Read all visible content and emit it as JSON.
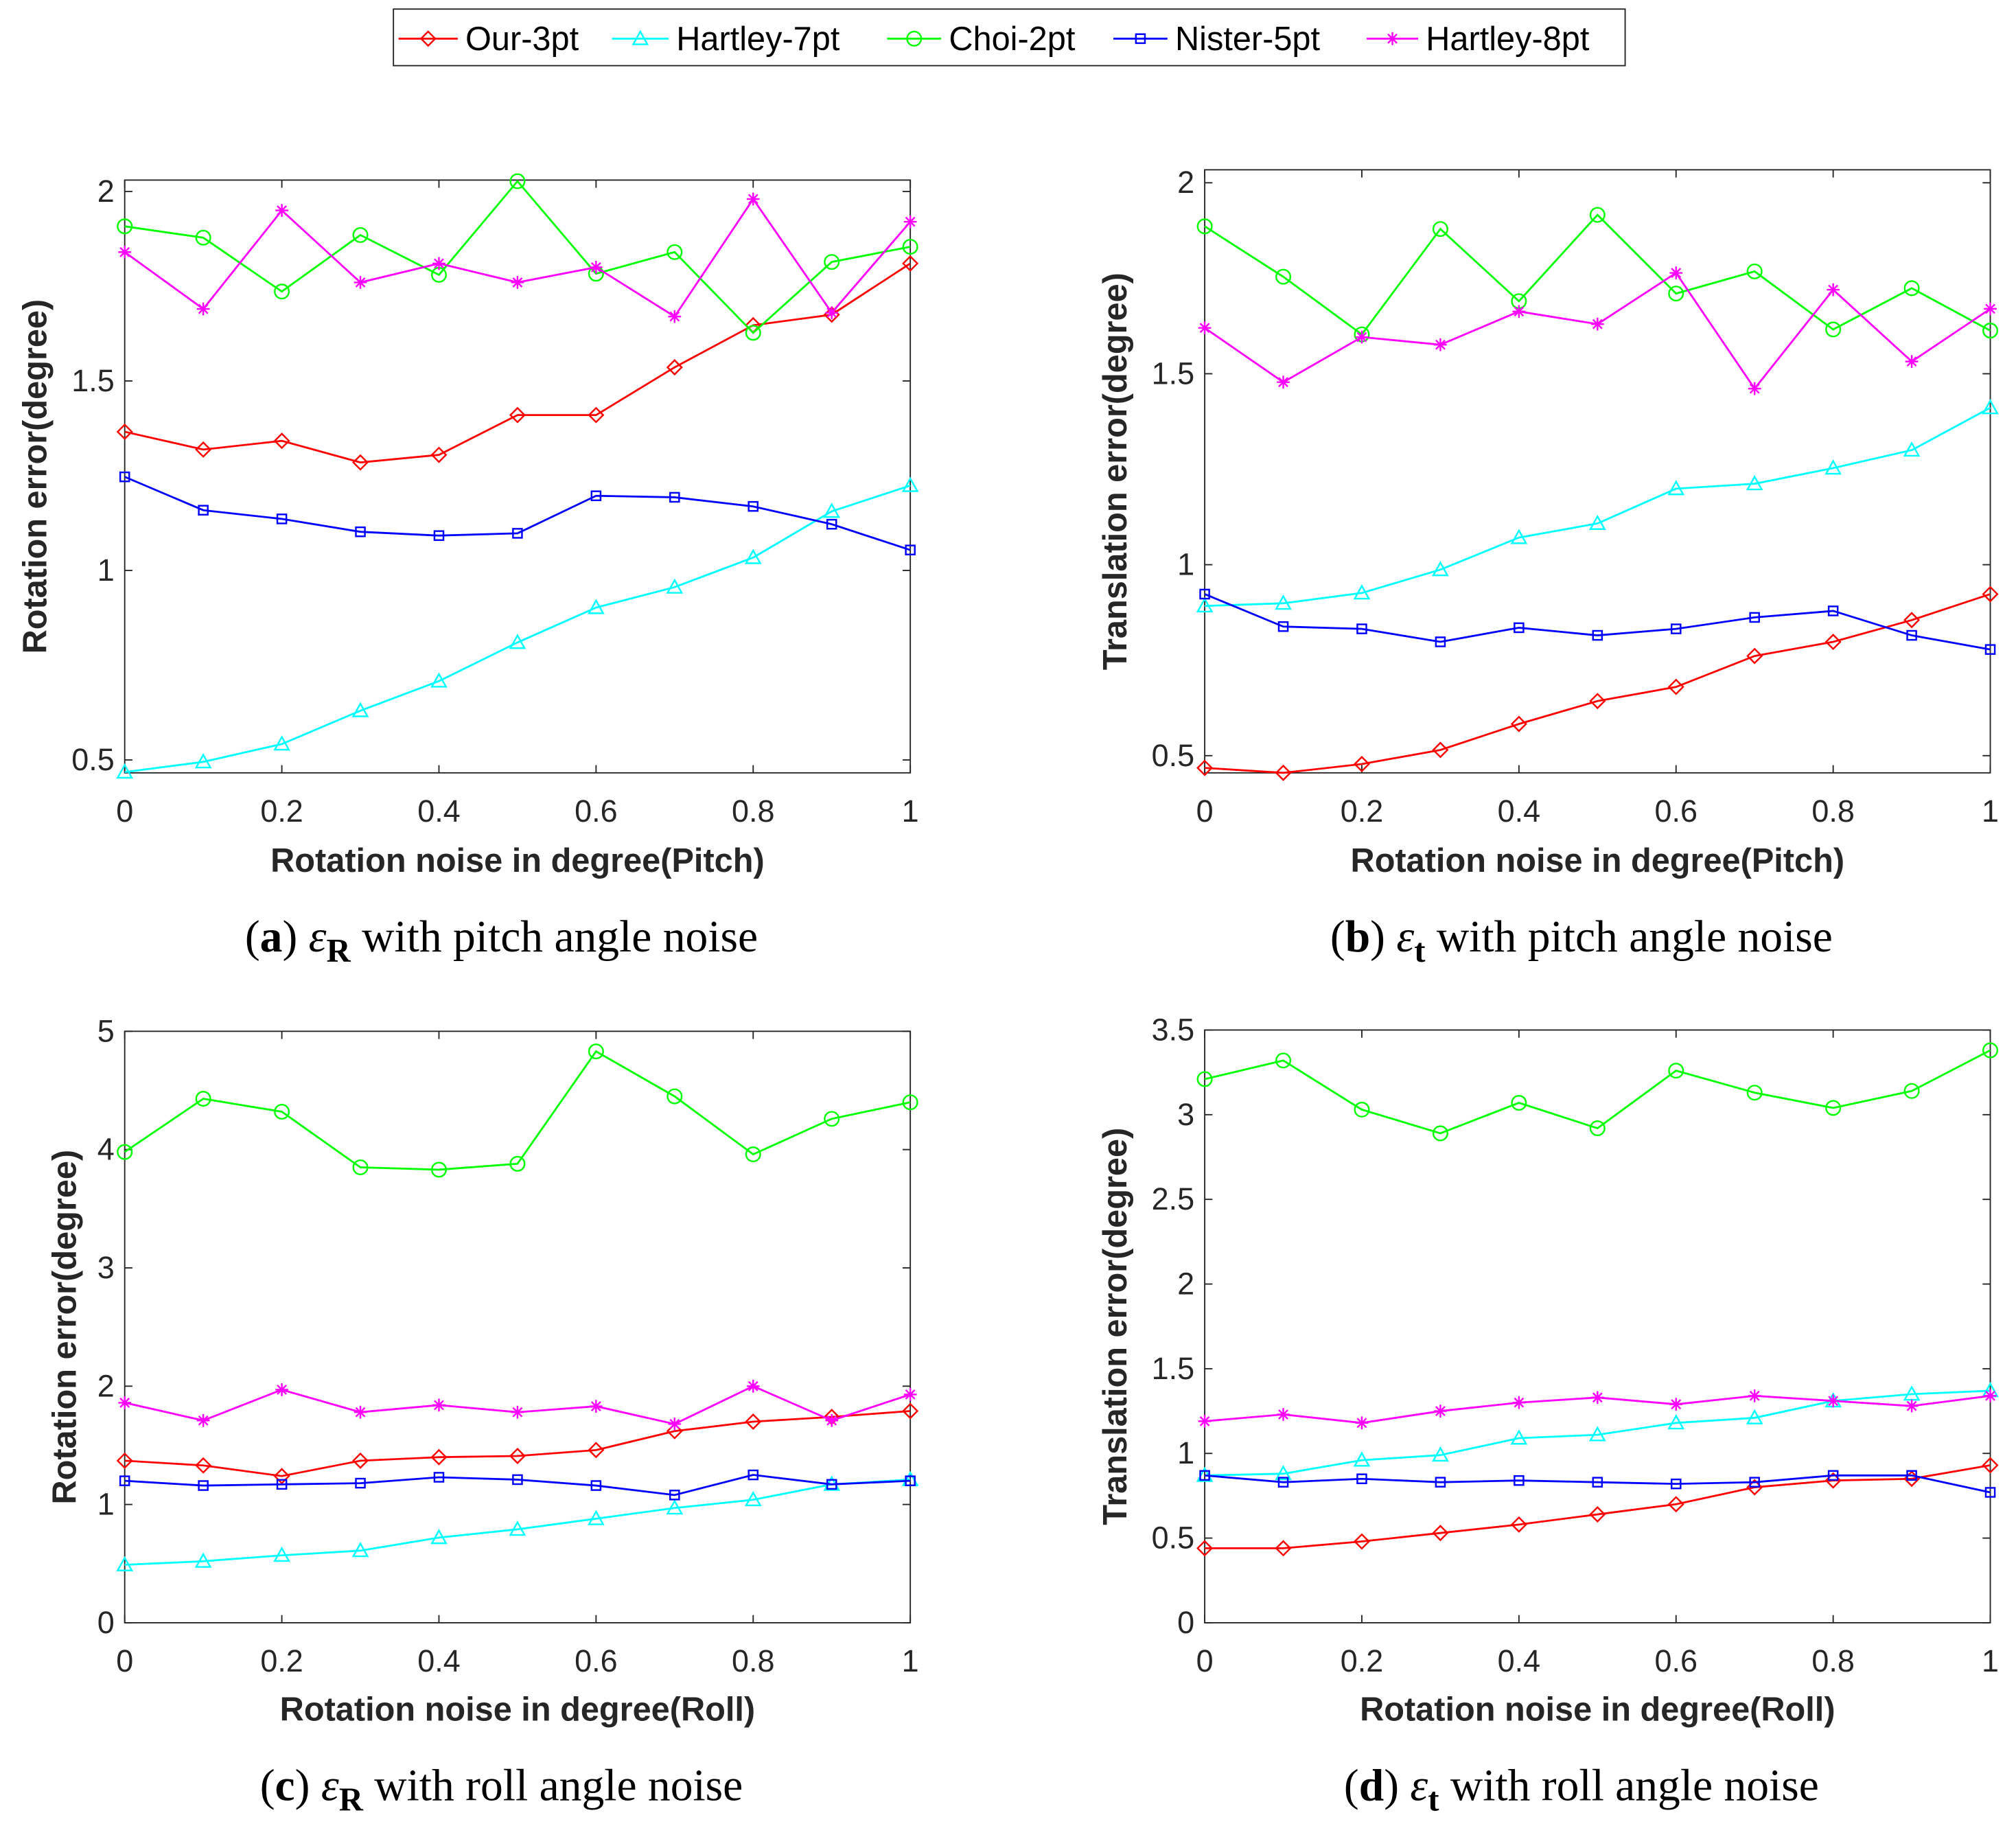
{
  "chart_data": {
    "type": "line",
    "legend": {
      "placement": "top-center",
      "entries": [
        {
          "name": "Our-3pt",
          "color": "#ff0000",
          "marker": "diamond"
        },
        {
          "name": "Hartley-7pt",
          "color": "#00ffff",
          "marker": "triangle"
        },
        {
          "name": "Choi-2pt",
          "color": "#00ff00",
          "marker": "circle"
        },
        {
          "name": "Nister-5pt",
          "color": "#0000ff",
          "marker": "square"
        },
        {
          "name": "Hartley-8pt",
          "color": "#ff00ff",
          "marker": "asterisk"
        }
      ]
    },
    "panels": [
      {
        "id": "a",
        "caption": {
          "letter": "a",
          "symbol": "ε",
          "sub": "R",
          "text": " with pitch angle noise"
        },
        "xlabel": "Rotation noise in degree(Pitch)",
        "ylabel": "Rotation error(degree)",
        "x": [
          0,
          0.1,
          0.2,
          0.3,
          0.4,
          0.5,
          0.6,
          0.7,
          0.8,
          0.9,
          1
        ],
        "xticks": [
          "0",
          "0.2",
          "0.4",
          "0.6",
          "0.8",
          "1"
        ],
        "xtick_values": [
          0,
          0.2,
          0.4,
          0.6,
          0.8,
          1
        ],
        "yticks": [
          "0.5",
          "1",
          "1.5",
          "2"
        ],
        "ytick_values": [
          0.5,
          1,
          1.5,
          2
        ],
        "xlim": [
          0,
          1
        ],
        "ylim": [
          0.466,
          2.03
        ],
        "series": [
          {
            "name": "Our-3pt",
            "values": [
              1.366,
              1.319,
              1.342,
              1.285,
              1.305,
              1.41,
              1.41,
              1.536,
              1.647,
              1.675,
              1.81
            ]
          },
          {
            "name": "Hartley-7pt",
            "values": [
              0.468,
              0.495,
              0.542,
              0.63,
              0.708,
              0.81,
              0.902,
              0.956,
              1.034,
              1.156,
              1.224
            ]
          },
          {
            "name": "Choi-2pt",
            "values": [
              1.908,
              1.878,
              1.736,
              1.885,
              1.78,
              2.027,
              1.783,
              1.84,
              1.627,
              1.814,
              1.854
            ]
          },
          {
            "name": "Nister-5pt",
            "values": [
              1.247,
              1.159,
              1.136,
              1.102,
              1.092,
              1.098,
              1.197,
              1.193,
              1.169,
              1.122,
              1.054
            ]
          },
          {
            "name": "Hartley-8pt",
            "values": [
              1.84,
              1.69,
              1.95,
              1.76,
              1.81,
              1.76,
              1.8,
              1.67,
              1.98,
              1.68,
              1.92
            ]
          }
        ]
      },
      {
        "id": "b",
        "caption": {
          "letter": "b",
          "symbol": "ε",
          "sub": "t",
          "text": " with pitch angle noise"
        },
        "xlabel": "Rotation noise in degree(Pitch)",
        "ylabel": "Translation error(degree)",
        "x": [
          0,
          0.1,
          0.2,
          0.3,
          0.4,
          0.5,
          0.6,
          0.7,
          0.8,
          0.9,
          1
        ],
        "xticks": [
          "0",
          "0.2",
          "0.4",
          "0.6",
          "0.8",
          "1"
        ],
        "xtick_values": [
          0,
          0.2,
          0.4,
          0.6,
          0.8,
          1
        ],
        "yticks": [
          "0.5",
          "1",
          "1.5",
          "2"
        ],
        "ytick_values": [
          0.5,
          1,
          1.5,
          2
        ],
        "xlim": [
          0,
          1
        ],
        "ylim": [
          0.455,
          2.034
        ],
        "series": [
          {
            "name": "Our-3pt",
            "values": [
              0.468,
              0.455,
              0.478,
              0.515,
              0.583,
              0.643,
              0.68,
              0.761,
              0.798,
              0.855,
              0.923
            ]
          },
          {
            "name": "Hartley-7pt",
            "values": [
              0.892,
              0.899,
              0.926,
              0.987,
              1.071,
              1.108,
              1.199,
              1.212,
              1.253,
              1.3,
              1.411
            ]
          },
          {
            "name": "Choi-2pt",
            "values": [
              1.886,
              1.754,
              1.603,
              1.879,
              1.69,
              1.916,
              1.71,
              1.768,
              1.616,
              1.724,
              1.613
            ]
          },
          {
            "name": "Nister-5pt",
            "values": [
              0.923,
              0.838,
              0.832,
              0.798,
              0.835,
              0.815,
              0.832,
              0.862,
              0.879,
              0.815,
              0.778
            ]
          },
          {
            "name": "Hartley-8pt",
            "values": [
              1.62,
              1.478,
              1.596,
              1.576,
              1.663,
              1.63,
              1.764,
              1.461,
              1.72,
              1.532,
              1.67
            ]
          }
        ]
      },
      {
        "id": "c",
        "caption": {
          "letter": "c",
          "symbol": "ε",
          "sub": "R",
          "text": " with roll angle noise"
        },
        "xlabel": "Rotation noise in degree(Roll)",
        "ylabel": "Rotation error(degree)",
        "x": [
          0,
          0.1,
          0.2,
          0.3,
          0.4,
          0.5,
          0.6,
          0.7,
          0.8,
          0.9,
          1
        ],
        "xticks": [
          "0",
          "0.2",
          "0.4",
          "0.6",
          "0.8",
          "1"
        ],
        "xtick_values": [
          0,
          0.2,
          0.4,
          0.6,
          0.8,
          1
        ],
        "yticks": [
          "0",
          "1",
          "2",
          "3",
          "4",
          "5"
        ],
        "ytick_values": [
          0,
          1,
          2,
          3,
          4,
          5
        ],
        "xlim": [
          0,
          1
        ],
        "ylim": [
          0,
          5
        ],
        "series": [
          {
            "name": "Our-3pt",
            "values": [
              1.37,
              1.33,
              1.24,
              1.37,
              1.4,
              1.41,
              1.46,
              1.62,
              1.7,
              1.74,
              1.79
            ]
          },
          {
            "name": "Hartley-7pt",
            "values": [
              0.49,
              0.52,
              0.57,
              0.61,
              0.72,
              0.79,
              0.88,
              0.97,
              1.04,
              1.17,
              1.21
            ]
          },
          {
            "name": "Choi-2pt",
            "values": [
              3.98,
              4.43,
              4.32,
              3.85,
              3.83,
              3.88,
              4.83,
              4.45,
              3.96,
              4.26,
              4.4
            ]
          },
          {
            "name": "Nister-5pt",
            "values": [
              1.2,
              1.16,
              1.17,
              1.18,
              1.23,
              1.21,
              1.16,
              1.08,
              1.25,
              1.17,
              1.2
            ]
          },
          {
            "name": "Hartley-8pt",
            "values": [
              1.86,
              1.71,
              1.97,
              1.78,
              1.84,
              1.78,
              1.83,
              1.68,
              2.0,
              1.71,
              1.93
            ]
          }
        ]
      },
      {
        "id": "d",
        "caption": {
          "letter": "d",
          "symbol": "ε",
          "sub": "t",
          "text": " with roll angle noise"
        },
        "xlabel": "Rotation noise in degree(Roll)",
        "ylabel": "Translation error(degree)",
        "x": [
          0,
          0.1,
          0.2,
          0.3,
          0.4,
          0.5,
          0.6,
          0.7,
          0.8,
          0.9,
          1
        ],
        "xticks": [
          "0",
          "0.2",
          "0.4",
          "0.6",
          "0.8",
          "1"
        ],
        "xtick_values": [
          0,
          0.2,
          0.4,
          0.6,
          0.8,
          1
        ],
        "yticks": [
          "0",
          "0.5",
          "1",
          "1.5",
          "2",
          "2.5",
          "3",
          "3.5"
        ],
        "ytick_values": [
          0,
          0.5,
          1,
          1.5,
          2,
          2.5,
          3,
          3.5
        ],
        "xlim": [
          0,
          1
        ],
        "ylim": [
          0,
          3.5
        ],
        "series": [
          {
            "name": "Our-3pt",
            "values": [
              0.44,
              0.44,
              0.48,
              0.53,
              0.58,
              0.64,
              0.7,
              0.8,
              0.84,
              0.85,
              0.93
            ]
          },
          {
            "name": "Hartley-7pt",
            "values": [
              0.87,
              0.88,
              0.96,
              0.99,
              1.09,
              1.11,
              1.18,
              1.21,
              1.31,
              1.35,
              1.37
            ]
          },
          {
            "name": "Choi-2pt",
            "values": [
              3.21,
              3.32,
              3.03,
              2.89,
              3.07,
              2.92,
              3.26,
              3.13,
              3.04,
              3.14,
              3.38
            ]
          },
          {
            "name": "Nister-5pt",
            "values": [
              0.87,
              0.83,
              0.85,
              0.83,
              0.84,
              0.83,
              0.82,
              0.83,
              0.87,
              0.87,
              0.77
            ]
          },
          {
            "name": "Hartley-8pt",
            "values": [
              1.19,
              1.23,
              1.18,
              1.25,
              1.3,
              1.33,
              1.29,
              1.34,
              1.31,
              1.28,
              1.34
            ]
          }
        ]
      }
    ]
  }
}
